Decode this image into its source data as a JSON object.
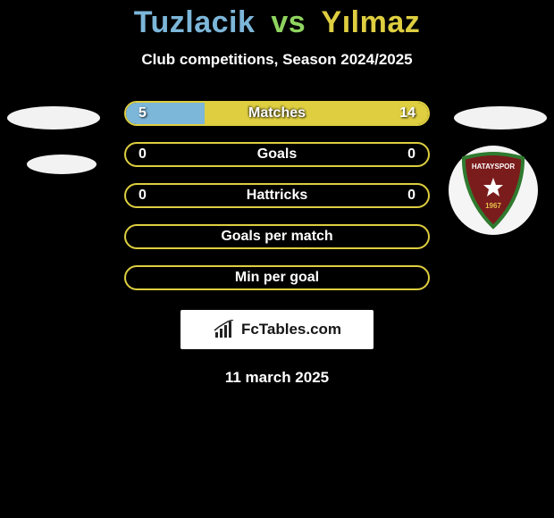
{
  "background_color": "#000000",
  "title": {
    "player1": "Tuzlacik",
    "vs": "vs",
    "player2": "Yılmaz",
    "p1_color": "#7cb6d9",
    "vs_color": "#8fd45f",
    "p2_color": "#dece40",
    "fontsize": 34
  },
  "subtitle": {
    "text": "Club competitions, Season 2024/2025",
    "fontsize": 17,
    "color": "#ffffff"
  },
  "colors": {
    "left": "#7cb6d9",
    "right": "#dece40",
    "bar_border": "#dece40",
    "text": "#ffffff"
  },
  "bars": [
    {
      "label": "Matches",
      "left_val": "5",
      "right_val": "14",
      "left_pct": 26,
      "right_pct": 74,
      "show_vals": true
    },
    {
      "label": "Goals",
      "left_val": "0",
      "right_val": "0",
      "left_pct": 0,
      "right_pct": 0,
      "show_vals": true
    },
    {
      "label": "Hattricks",
      "left_val": "0",
      "right_val": "0",
      "left_pct": 0,
      "right_pct": 0,
      "show_vals": true
    },
    {
      "label": "Goals per match",
      "left_val": "",
      "right_val": "",
      "left_pct": 0,
      "right_pct": 0,
      "show_vals": false
    },
    {
      "label": "Min per goal",
      "left_val": "",
      "right_val": "",
      "left_pct": 0,
      "right_pct": 0,
      "show_vals": false
    }
  ],
  "decor": {
    "ellipse_color": "#f2f2f2"
  },
  "badge": {
    "bg": "#f5f5f5",
    "shield_color": "#7a1c1c",
    "shield_border": "#2f7a2f",
    "label": "HATAYSPOR",
    "label_color": "#ffffff",
    "year": "1967",
    "year_color": "#e6c04a"
  },
  "site": {
    "text": "FcTables.com",
    "text_color": "#161616",
    "bg": "#ffffff",
    "icon_color": "#222222"
  },
  "date": {
    "text": "11 march 2025",
    "color": "#ffffff",
    "fontsize": 17
  }
}
